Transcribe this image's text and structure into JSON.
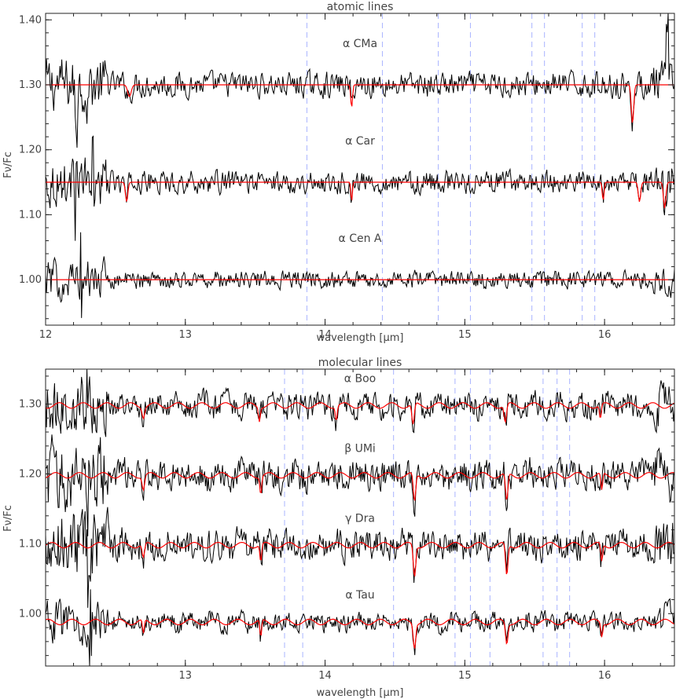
{
  "chart_data": [
    {
      "type": "line",
      "title": "atomic lines",
      "xlabel": "wavelength [μm]",
      "ylabel": "Fν/Fc",
      "xlim": [
        12.0,
        16.5
      ],
      "ylim": [
        0.93,
        1.41
      ],
      "x_ticks": [
        12,
        13,
        14,
        15,
        16
      ],
      "y_ticks": [
        1.0,
        1.1,
        1.2,
        1.3,
        1.4
      ],
      "y_tick_labels": [
        "1.00",
        "1.10",
        "1.20",
        "1.30",
        "1.40"
      ],
      "marker_lines": [
        13.87,
        14.41,
        14.81,
        15.04,
        15.48,
        15.57,
        15.84,
        15.93
      ],
      "series": [
        {
          "name": "α CMa",
          "offset": 1.3,
          "noise": 0.017,
          "spikes": [
            [
              12.22,
              0.09
            ],
            [
              12.3,
              0.07
            ],
            [
              16.45,
              0.09
            ]
          ],
          "dips": [
            [
              12.6,
              0.018,
              0.03
            ],
            [
              14.19,
              0.035,
              0.015
            ],
            [
              16.2,
              0.06,
              0.02
            ]
          ]
        },
        {
          "name": "α Car",
          "offset": 1.15,
          "noise": 0.015,
          "spikes": [
            [
              12.22,
              0.07
            ],
            [
              12.34,
              0.06
            ]
          ],
          "dips": [
            [
              12.58,
              0.03,
              0.02
            ],
            [
              14.19,
              0.03,
              0.012
            ],
            [
              15.99,
              0.028,
              0.015
            ],
            [
              16.25,
              0.03,
              0.02
            ],
            [
              16.43,
              0.04,
              0.02
            ]
          ]
        },
        {
          "name": "α Cen A",
          "offset": 1.0,
          "noise": 0.012,
          "spikes": [
            [
              12.25,
              0.06
            ]
          ],
          "dips": []
        }
      ],
      "model_color": "#ff0000",
      "data_color": "#000000",
      "marker_color": "#a9b4ff"
    },
    {
      "type": "line",
      "title": "molecular lines",
      "xlabel": "wavelength [μm]",
      "ylabel": "Fν/Fc",
      "xlim": [
        12.0,
        16.5
      ],
      "ylim": [
        0.925,
        1.35
      ],
      "x_ticks": [
        13,
        14,
        15,
        16
      ],
      "y_ticks": [
        1.0,
        1.1,
        1.2,
        1.3
      ],
      "y_tick_labels": [
        "1.00",
        "1.10",
        "1.20",
        "1.30"
      ],
      "marker_lines": [
        13.71,
        13.84,
        14.49,
        14.93,
        15.04,
        15.18,
        15.56,
        15.66,
        15.75
      ],
      "series": [
        {
          "name": "α Boo",
          "offset": 1.3,
          "noise": 0.016,
          "spikes": [
            [
              12.3,
              0.05
            ]
          ],
          "dips": [
            [
              12.7,
              0.015,
              0.02
            ],
            [
              13.53,
              0.02,
              0.015
            ],
            [
              14.08,
              0.02,
              0.015
            ],
            [
              14.63,
              0.03,
              0.02
            ],
            [
              15.29,
              0.025,
              0.02
            ],
            [
              15.97,
              0.02,
              0.015
            ]
          ]
        },
        {
          "name": "β UMi",
          "offset": 1.2,
          "noise": 0.02,
          "spikes": [
            [
              12.3,
              0.05
            ]
          ],
          "dips": [
            [
              12.7,
              0.02,
              0.02
            ],
            [
              13.54,
              0.025,
              0.015
            ],
            [
              14.64,
              0.04,
              0.02
            ],
            [
              15.3,
              0.04,
              0.02
            ],
            [
              15.98,
              0.025,
              0.015
            ]
          ]
        },
        {
          "name": "γ Dra",
          "offset": 1.1,
          "noise": 0.02,
          "spikes": [
            [
              12.3,
              0.05
            ]
          ],
          "dips": [
            [
              12.7,
              0.02,
              0.02
            ],
            [
              13.54,
              0.025,
              0.015
            ],
            [
              14.64,
              0.045,
              0.02
            ],
            [
              15.3,
              0.045,
              0.02
            ],
            [
              15.98,
              0.025,
              0.015
            ]
          ]
        },
        {
          "name": "α Tau",
          "offset": 0.99,
          "noise": 0.012,
          "spikes": [
            [
              12.32,
              0.04
            ]
          ],
          "dips": [
            [
              12.7,
              0.02,
              0.015
            ],
            [
              13.54,
              0.025,
              0.015
            ],
            [
              14.64,
              0.035,
              0.02
            ],
            [
              15.3,
              0.03,
              0.02
            ],
            [
              15.98,
              0.02,
              0.015
            ]
          ]
        }
      ],
      "model_color": "#ff0000",
      "data_color": "#000000",
      "marker_color": "#a9b4ff"
    }
  ]
}
